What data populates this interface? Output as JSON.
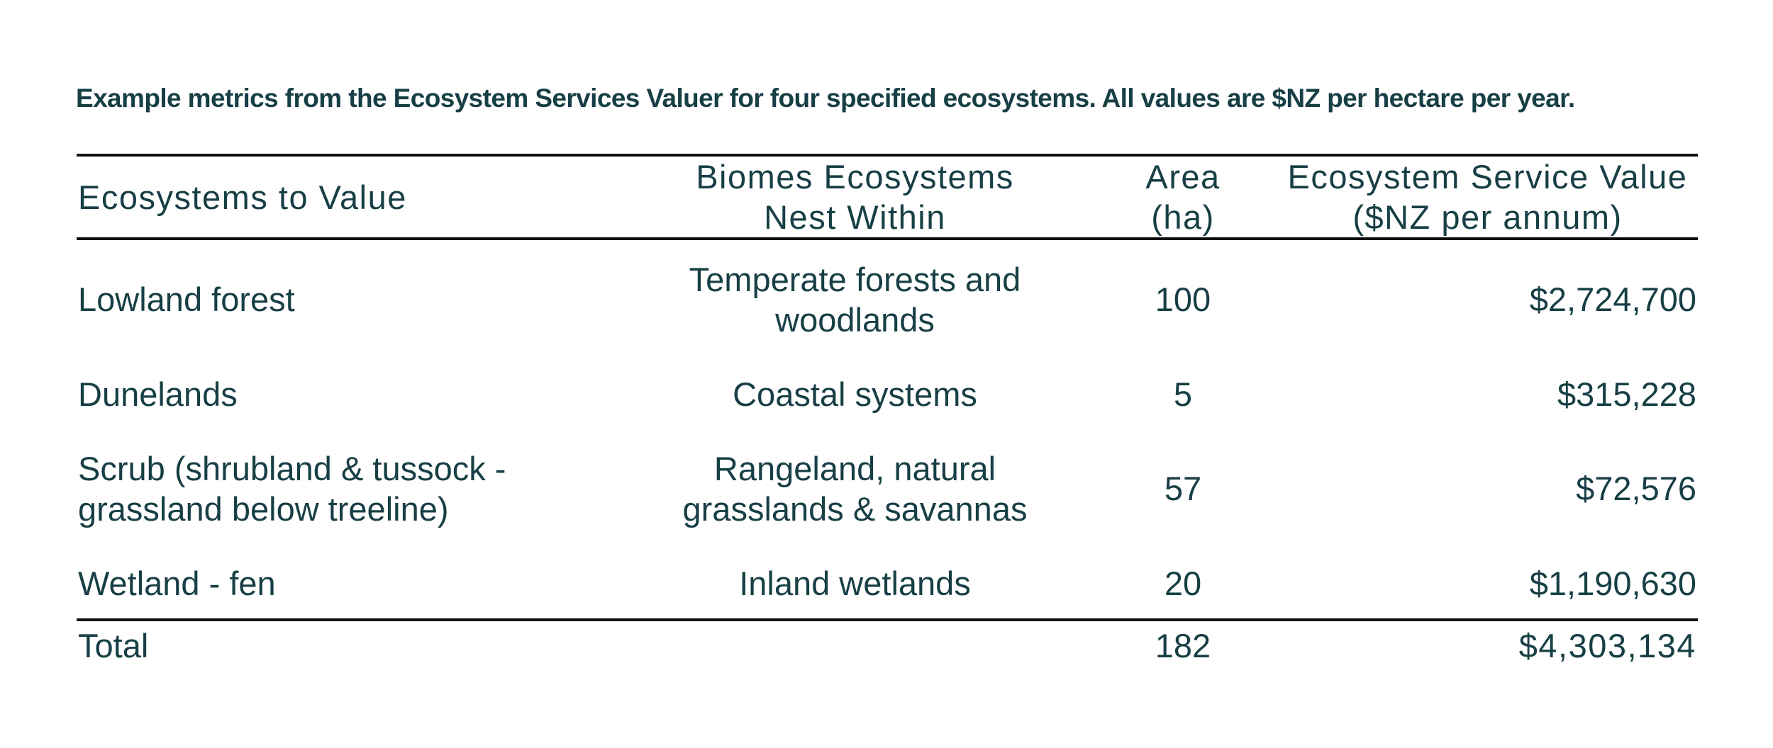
{
  "caption": "Example metrics from the Ecosystem Services Valuer for four specified ecosystems. All values are $NZ per hectare per year.",
  "table": {
    "headers": [
      [
        "Ecosystems to Value"
      ],
      [
        "Biomes Ecosystems",
        "Nest Within"
      ],
      [
        "Area",
        "(ha)"
      ],
      [
        "Ecosystem Service Value",
        "($NZ per annum)"
      ]
    ],
    "rows": [
      {
        "ecosystem": [
          "Lowland forest"
        ],
        "biome": [
          "Temperate forests and",
          "woodlands"
        ],
        "area": "100",
        "value": "$2,724,700"
      },
      {
        "ecosystem": [
          "Dunelands"
        ],
        "biome": [
          "Coastal systems"
        ],
        "area": "5",
        "value": "$315,228"
      },
      {
        "ecosystem": [
          "Scrub (shrubland & tussock -",
          "grassland below treeline)"
        ],
        "biome": [
          "Rangeland, natural",
          "grasslands & savannas"
        ],
        "area": "57",
        "value": "$72,576"
      },
      {
        "ecosystem": [
          "Wetland - fen"
        ],
        "biome": [
          "Inland wetlands"
        ],
        "area": "20",
        "value": "$1,190,630"
      }
    ],
    "total": {
      "label": "Total",
      "area": "182",
      "value": "$4,303,134"
    }
  }
}
